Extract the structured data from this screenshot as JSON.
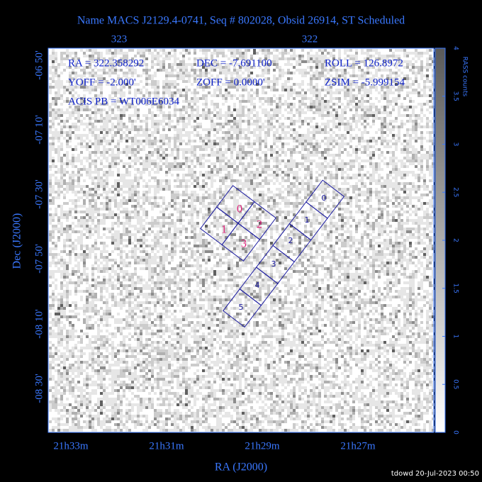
{
  "title": "Name MACS J2129.4-0741, Seq # 802028, Obsid 26914, ST Scheduled",
  "axes": {
    "top_ticks": [
      "323",
      "322"
    ],
    "left_ticks": [
      "-06 50'",
      "-07 10'",
      "-07 30'",
      "-07 50'",
      "-08 10'",
      "-08 30'"
    ],
    "bottom_ticks": [
      "21h33m",
      "21h31m",
      "21h29m",
      "21h27m"
    ],
    "x_label": "RA (J2000)",
    "y_label": "Dec (J2000)"
  },
  "info": {
    "ra": "RA = 322.358292",
    "dec": "DEC = -7.691100",
    "roll": "ROLL = 126.8972",
    "yoff": "YOFF = -2.000'",
    "zoff": "ZOFF = 0.0000'",
    "zsim": "ZSIM = -5.999154",
    "acis_pb": "ACIS PB = WT006E6034"
  },
  "colorbar": {
    "label": "RASS counts",
    "ticks": [
      0,
      0.5,
      1,
      1.5,
      2,
      2.5,
      3,
      3.5,
      4
    ]
  },
  "acis_i": {
    "chips": [
      "0",
      "1",
      "2",
      "3"
    ]
  },
  "acis_s": {
    "chips": [
      "0",
      "1",
      "2",
      "3",
      "4",
      "5"
    ]
  },
  "footer": "tdowd 20-Jul-2023 00:50"
}
